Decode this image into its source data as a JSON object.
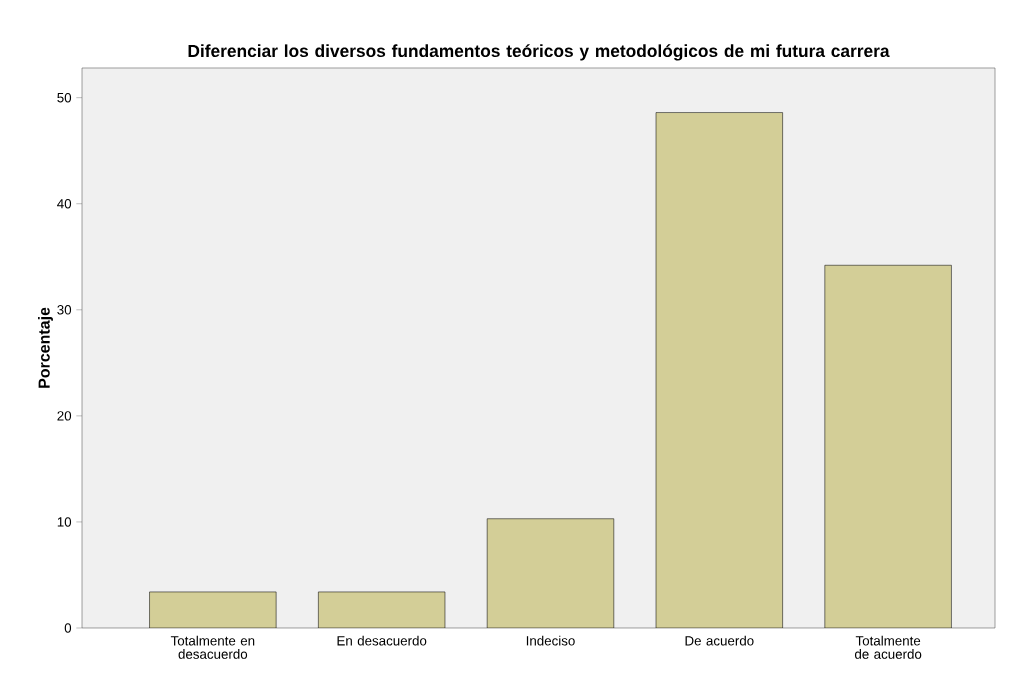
{
  "chart_data": {
    "type": "bar",
    "title": "Diferenciar los diversos fundamentos teóricos y metodológicos de mi futura carrera",
    "ylabel": "Porcentaje",
    "categories": [
      "Totalmente en desacuerdo",
      "En desacuerdo",
      "Indeciso",
      "De acuerdo",
      "Totalmente de acuerdo"
    ],
    "values": [
      3.4,
      3.4,
      10.3,
      48.6,
      34.2
    ],
    "color": "#d3ce97",
    "ylim": [
      0,
      52.8
    ],
    "yticks": [
      0,
      10,
      20,
      30,
      40,
      50
    ]
  }
}
